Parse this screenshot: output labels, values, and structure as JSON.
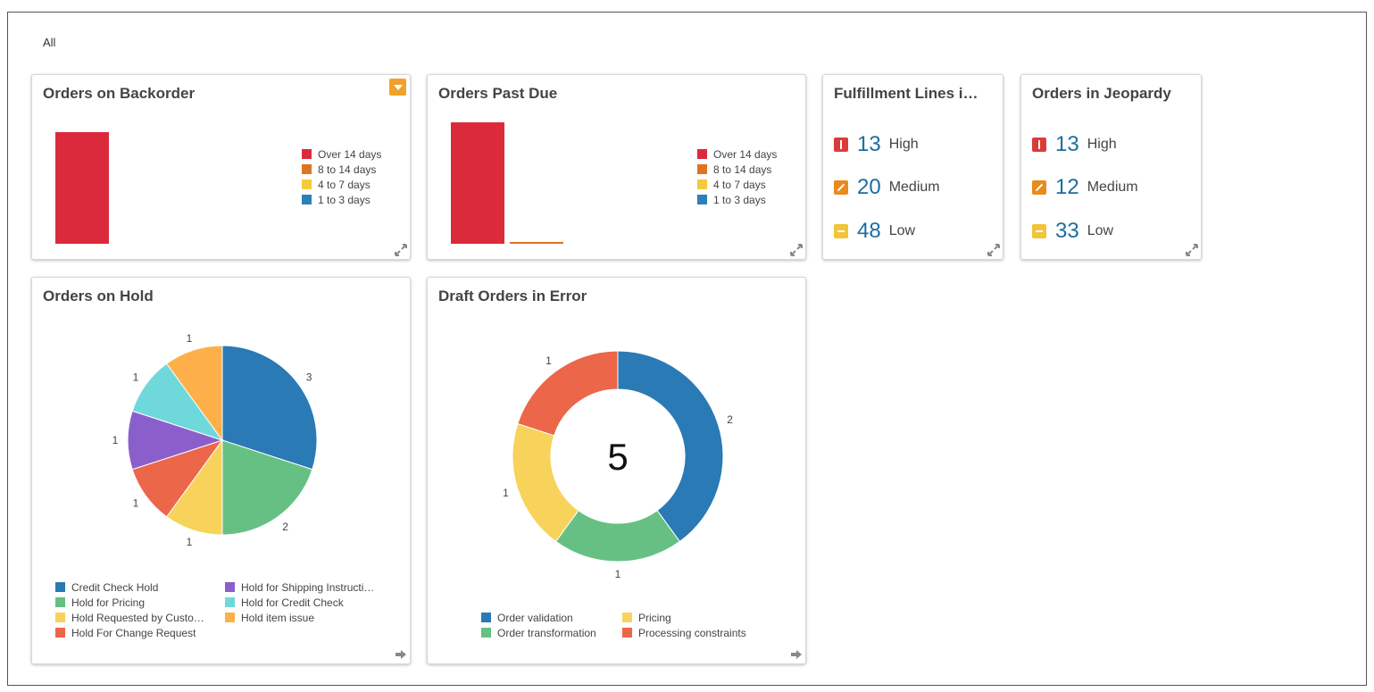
{
  "filter": {
    "label": "All"
  },
  "colors": {
    "red": "#dc2a3d",
    "orange": "#e0731f",
    "yellow": "#f5ca3f",
    "blue": "#2a80b9",
    "accent": "#f0a12b",
    "number": "#1b6e9e"
  },
  "backorder": {
    "title": "Orders on Backorder",
    "legend": [
      "Over 14 days",
      "8 to 14 days",
      "4 to 7 days",
      "1 to 3 days"
    ]
  },
  "pastdue": {
    "title": "Orders Past Due",
    "legend": [
      "Over 14 days",
      "8 to 14 days",
      "4 to 7 days",
      "1 to 3 days"
    ]
  },
  "fulfillment": {
    "title": "Fulfillment Lines i…",
    "items": [
      {
        "count": "13",
        "label": "High"
      },
      {
        "count": "20",
        "label": "Medium"
      },
      {
        "count": "48",
        "label": "Low"
      }
    ]
  },
  "jeopardy": {
    "title": "Orders in Jeopardy",
    "items": [
      {
        "count": "13",
        "label": "High"
      },
      {
        "count": "12",
        "label": "Medium"
      },
      {
        "count": "33",
        "label": "Low"
      }
    ]
  },
  "hold": {
    "title": "Orders on Hold",
    "legend": [
      "Credit Check Hold",
      "Hold for Pricing",
      "Hold Requested by Custo…",
      "Hold For Change Request",
      "Hold for Shipping Instructi…",
      "Hold for Credit Check",
      "Hold item issue"
    ]
  },
  "draft": {
    "title": "Draft Orders in Error",
    "total": "5",
    "legend": [
      "Order validation",
      "Order transformation",
      "Pricing",
      "Processing constraints"
    ]
  },
  "chart_data": [
    {
      "type": "bar",
      "title": "Orders on Backorder",
      "categories": [
        "Over 14 days",
        "8 to 14 days",
        "4 to 7 days",
        "1 to 3 days"
      ],
      "values": [
        100,
        0,
        0,
        0
      ],
      "colors": [
        "#dc2a3d",
        "#e0731f",
        "#f5ca3f",
        "#2a80b9"
      ],
      "legend": "right"
    },
    {
      "type": "bar",
      "title": "Orders Past Due",
      "categories": [
        "Over 14 days",
        "8 to 14 days",
        "4 to 7 days",
        "1 to 3 days"
      ],
      "values": [
        100,
        1.5,
        0,
        0
      ],
      "colors": [
        "#dc2a3d",
        "#e0731f",
        "#f5ca3f",
        "#2a80b9"
      ],
      "legend": "right"
    },
    {
      "type": "pie",
      "title": "Orders on Hold",
      "categories": [
        "Credit Check Hold",
        "Hold for Pricing",
        "Hold Requested by Custo…",
        "Hold For Change Request",
        "Hold for Shipping Instructi…",
        "Hold for Credit Check",
        "Hold item issue"
      ],
      "values": [
        3,
        2,
        1,
        1,
        1,
        1,
        1
      ],
      "colors": [
        "#2a7ab5",
        "#67c083",
        "#f7d35b",
        "#ec6649",
        "#8b5fcb",
        "#6fd8db",
        "#fdb04a"
      ],
      "legend": "bottom"
    },
    {
      "type": "pie",
      "title": "Draft Orders in Error",
      "categories": [
        "Order validation",
        "Order transformation",
        "Pricing",
        "Processing constraints"
      ],
      "values": [
        2,
        1,
        1,
        1
      ],
      "colors": [
        "#2a7ab5",
        "#67c083",
        "#f7d35b",
        "#ec6649"
      ],
      "center_label": "5",
      "legend": "bottom"
    }
  ]
}
